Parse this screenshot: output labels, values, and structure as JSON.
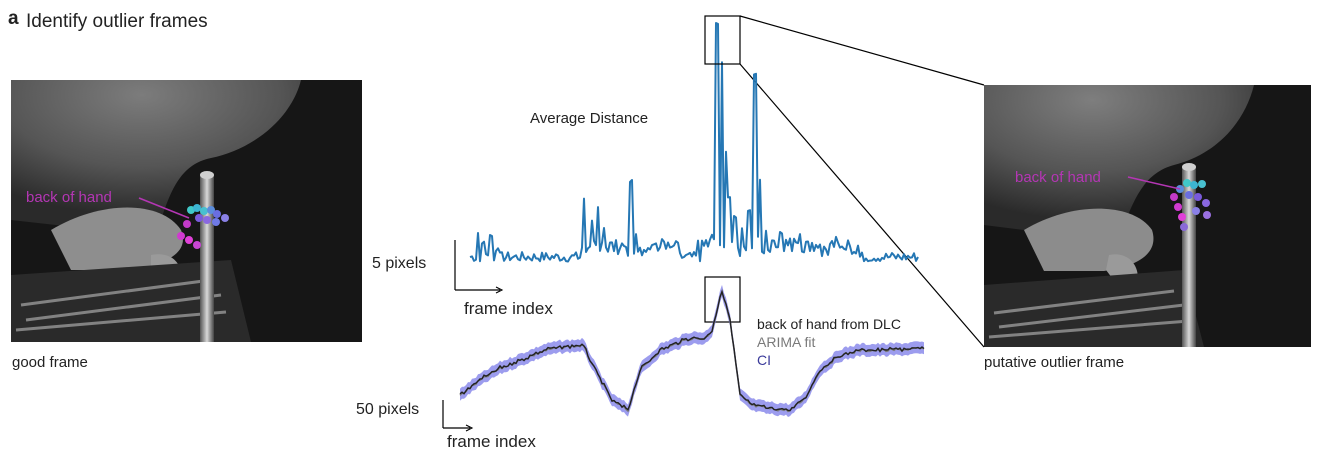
{
  "panel": {
    "letter": "a",
    "title": "Identify outlier frames"
  },
  "left_image": {
    "caption": "good frame",
    "bodypart_label": "back of hand"
  },
  "right_image": {
    "caption": "putative outlier frame",
    "bodypart_label": "back of hand"
  },
  "top_trace": {
    "title": "Average Distance",
    "scalebar_y": "5 pixels",
    "scalebar_x": "frame index",
    "color": "#2577b4"
  },
  "bottom_trace": {
    "scalebar_y": "50 pixels",
    "scalebar_x": "frame index",
    "legend": [
      {
        "label": "back of hand from DLC",
        "color": "#222222"
      },
      {
        "label": "ARIMA fit",
        "color": "#7a7a7a"
      },
      {
        "label": "CI",
        "color": "#3a3a9a"
      }
    ],
    "band_color": "#7b7be8"
  }
}
